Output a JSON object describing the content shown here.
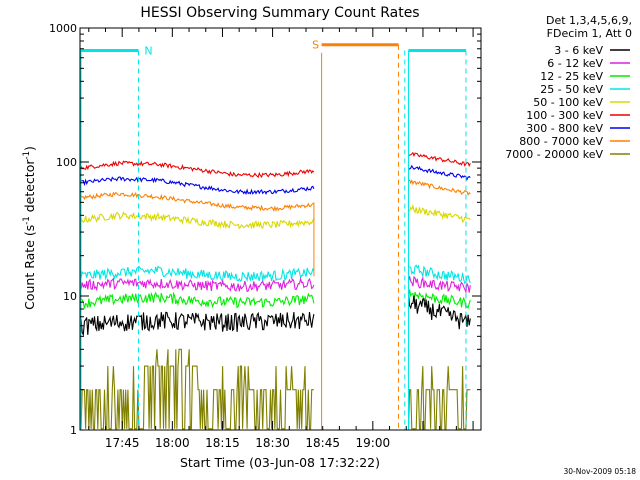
{
  "chart_data": {
    "type": "line",
    "title": "HESSI Observing Summary Count Rates",
    "xlabel": "Start Time (03-Jun-08 17:32:22)",
    "ylabel_parts": [
      "Count Rate (s",
      "-1",
      " detector",
      "-1",
      ")"
    ],
    "yscale": "log",
    "ylim": [
      1,
      1000
    ],
    "xlim_minutes": [
      0,
      120
    ],
    "x_ticks": [
      {
        "label": "17:45",
        "minutes": 12.63
      },
      {
        "label": "18:00",
        "minutes": 27.63
      },
      {
        "label": "18:15",
        "minutes": 42.63
      },
      {
        "label": "18:30",
        "minutes": 57.63
      },
      {
        "label": "18:45",
        "minutes": 72.63
      },
      {
        "label": "19:00",
        "minutes": 87.63
      }
    ],
    "y_ticks": [
      {
        "label": "1",
        "value": 1
      },
      {
        "label": "10",
        "value": 10
      },
      {
        "label": "100",
        "value": 100
      },
      {
        "label": "1000",
        "value": 1000
      }
    ],
    "legend_header": [
      "Det 1,3,4,5,6,9,",
      "FDecim 1, Att 0"
    ],
    "series": [
      {
        "name": "3 - 6 keV",
        "color": "#000000",
        "pre": [
          6,
          6.4,
          6.6,
          6.5,
          6.4,
          6.5,
          6.6
        ],
        "post": [
          9,
          7.5,
          6.2
        ]
      },
      {
        "name": "6 - 12 keV",
        "color": "#e020e0",
        "pre": [
          12,
          12.5,
          12.5,
          12,
          11.8,
          12,
          12.5
        ],
        "post": [
          13,
          12,
          11.5
        ]
      },
      {
        "name": "12 - 25 keV",
        "color": "#00ee00",
        "pre": [
          8.8,
          9.5,
          9.8,
          9.2,
          9,
          9,
          9.6
        ],
        "post": [
          10.5,
          9.5,
          8.8
        ]
      },
      {
        "name": "25 - 50 keV",
        "color": "#00e5e5",
        "pre": [
          14,
          15,
          15.5,
          14.5,
          14,
          14.2,
          15
        ],
        "post": [
          16,
          14.5,
          13.5
        ]
      },
      {
        "name": "50 - 100 keV",
        "color": "#d8d800",
        "pre": [
          37,
          40,
          39,
          36,
          34,
          34,
          36
        ],
        "post": [
          45,
          41,
          37
        ]
      },
      {
        "name": "100 - 300 keV",
        "color": "#ee0000",
        "pre": [
          90,
          98,
          96,
          88,
          80,
          80,
          86
        ],
        "post": [
          115,
          105,
          95
        ]
      },
      {
        "name": "300 - 800 keV",
        "color": "#0000ee",
        "pre": [
          70,
          75,
          73,
          66,
          60,
          60,
          64
        ],
        "post": [
          92,
          83,
          76
        ]
      },
      {
        "name": "800 - 7000 keV",
        "color": "#ff8000",
        "pre": [
          54,
          58,
          55,
          50,
          46,
          45,
          48
        ],
        "post": [
          72,
          64,
          58
        ]
      },
      {
        "name": "7000 - 20000 keV",
        "color": "#808000",
        "pre": [
          1.6,
          2.1,
          2.7,
          2.5,
          2.3,
          2.2,
          2.4
        ],
        "post": [
          1.7,
          1.8,
          1.6
        ]
      }
    ],
    "gaps": {
      "data_end_minutes": 70.0,
      "data_resume_minutes": 98.3
    },
    "saa_marker": {
      "label": "S",
      "start_minutes": 72.3,
      "end_minutes": 95.3,
      "level": 750
    },
    "night_marker": {
      "label": "N",
      "level": 680,
      "segments": [
        [
          0,
          17.5
        ],
        [
          98.3,
          115.5
        ]
      ],
      "dashes_minutes": [
        17.5,
        97.2,
        115.5
      ]
    },
    "timestamp": "30-Nov-2009 05:18"
  }
}
